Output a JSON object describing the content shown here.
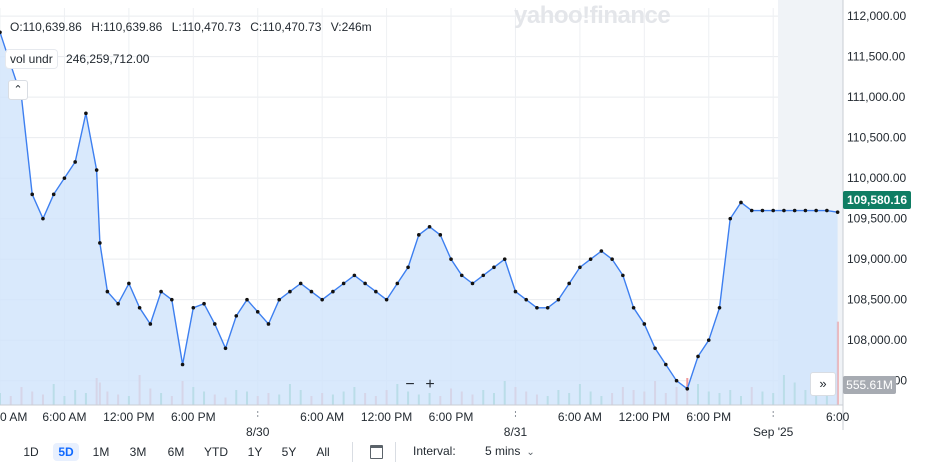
{
  "ohlc": {
    "open": "O:110,639.86",
    "high": "H:110,639.86",
    "low": "L:110,470.73",
    "close": "C:110,470.73",
    "volume": "V:246m"
  },
  "volume_indicator": {
    "label": "vol undr",
    "value": "246,259,712.00"
  },
  "watermark": "yahoo!finance",
  "current_price_label": "109,580.16",
  "current_volume_label": "555.61M",
  "colors": {
    "line": "#3d7ff0",
    "area": "#cfe3fb",
    "up_volume": "#63c49b",
    "down_volume": "#f09a9a",
    "price_tag": "#0f7d63"
  },
  "toolbar": {
    "ranges": [
      "1D",
      "5D",
      "1M",
      "3M",
      "6M",
      "YTD",
      "1Y",
      "5Y",
      "All"
    ],
    "active_range": "5D",
    "interval_label": "Interval:",
    "interval_value": "5 mins"
  },
  "chart_data": {
    "type": "line",
    "title": "",
    "xlabel": "",
    "ylabel": "",
    "ylim": [
      107200,
      112100
    ],
    "y_ticks": [
      "112,000.00",
      "111,500.00",
      "111,000.00",
      "110,500.00",
      "110,000.00",
      "109,500.00",
      "109,000.00",
      "108,500.00",
      "108,000.00",
      "107,500.00"
    ],
    "y_tick_values": [
      112000,
      111500,
      111000,
      110500,
      110000,
      109500,
      109000,
      108500,
      108000,
      107500
    ],
    "x_tick_labels": [
      "0 AM",
      "6:00 AM",
      "12:00 PM",
      "6:00 PM",
      "8/30",
      "6:00 AM",
      "12:00 PM",
      "6:00 PM",
      "8/31",
      "6:00 AM",
      "12:00 PM",
      "6:00 PM",
      "Sep '25",
      "6:00"
    ],
    "x_tick_hours": [
      0,
      6,
      12,
      18,
      24,
      30,
      36,
      42,
      48,
      54,
      60,
      66,
      72,
      78
    ],
    "x_range_hours": [
      0,
      78.5
    ],
    "series": [
      {
        "name": "",
        "x_hours": [
          0,
          1,
          2,
          3,
          4,
          5,
          6,
          7,
          8,
          9,
          9.3,
          10,
          11,
          12,
          13,
          14,
          15,
          16,
          17,
          18,
          19,
          20,
          21,
          22,
          23,
          24,
          25,
          26,
          27,
          28,
          29,
          30,
          31,
          32,
          33,
          34,
          35,
          36,
          37,
          38,
          39,
          40,
          41,
          42,
          43,
          44,
          45,
          46,
          47,
          48,
          49,
          50,
          51,
          52,
          53,
          54,
          55,
          56,
          57,
          58,
          59,
          60,
          61,
          62,
          63,
          64,
          65,
          66,
          67,
          68,
          69,
          70,
          71,
          72,
          73,
          74,
          75,
          76,
          77,
          78
        ],
        "y": [
          111800,
          111400,
          111000,
          109800,
          109500,
          109800,
          110000,
          110200,
          110800,
          110100,
          109200,
          108600,
          108450,
          108700,
          108400,
          108200,
          108600,
          108500,
          107700,
          108400,
          108450,
          108200,
          107900,
          108300,
          108500,
          108350,
          108200,
          108500,
          108600,
          108700,
          108600,
          108500,
          108600,
          108700,
          108800,
          108700,
          108600,
          108500,
          108700,
          108900,
          109300,
          109400,
          109300,
          109000,
          108800,
          108700,
          108800,
          108900,
          109000,
          108600,
          108500,
          108400,
          108400,
          108500,
          108700,
          108900,
          109000,
          109100,
          109000,
          108800,
          108400,
          108200,
          107900,
          107700,
          107500,
          107400,
          107800,
          108000,
          108400,
          109500,
          109700,
          109600,
          109600,
          109600,
          109600,
          109600,
          109600,
          109600,
          109600,
          109580
        ]
      }
    ],
    "volume": {
      "label": "vol undr",
      "values_millions": [
        80,
        60,
        120,
        90,
        70,
        140,
        60,
        100,
        80,
        180,
        150,
        90,
        70,
        60,
        200,
        110,
        80,
        60,
        160,
        120,
        90,
        70,
        50,
        100,
        90,
        60,
        80,
        70,
        140,
        100,
        60,
        80,
        70,
        90,
        120,
        80,
        60,
        100,
        140,
        90,
        70,
        80,
        60,
        110,
        90,
        70,
        100,
        80,
        160,
        120,
        90,
        70,
        60,
        100,
        80,
        140,
        90,
        60,
        80,
        120,
        100,
        90,
        160,
        80,
        120,
        180,
        140,
        90,
        80,
        100,
        60,
        120,
        90,
        80,
        200,
        150,
        100,
        80,
        90,
        555.61
      ]
    }
  }
}
